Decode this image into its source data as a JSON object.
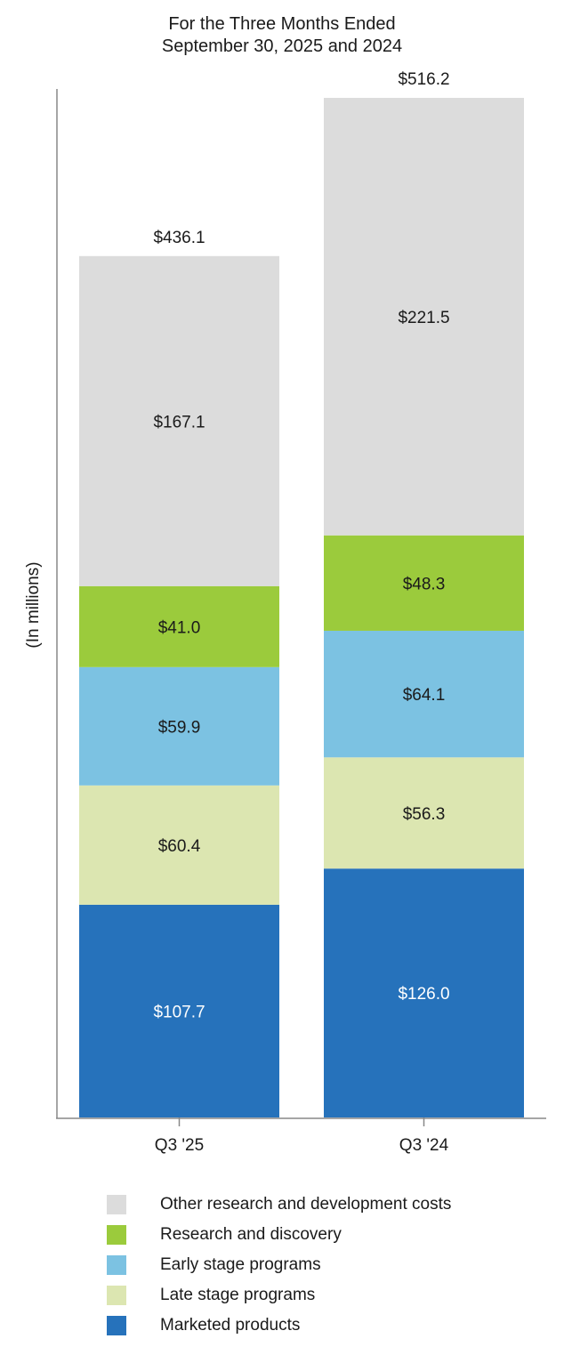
{
  "chart_data": {
    "type": "bar",
    "stacked": true,
    "title": [
      "For the Three Months Ended",
      "September 30, 2025 and 2024"
    ],
    "ylabel": "(In millions)",
    "categories": [
      "Q3 '25",
      "Q3 '24"
    ],
    "totals": [
      "$436.1",
      "$516.2"
    ],
    "ylim": [
      0,
      516.2
    ],
    "series": [
      {
        "name": "Marketed products",
        "color": "#2672bb",
        "label_color": "#ffffff",
        "values": [
          107.7,
          126.0
        ],
        "labels": [
          "$107.7",
          "$126.0"
        ]
      },
      {
        "name": "Late stage programs",
        "color": "#dce6b1",
        "label_color": "#1a1a1a",
        "values": [
          60.4,
          56.3
        ],
        "labels": [
          "$60.4",
          "$56.3"
        ]
      },
      {
        "name": "Early stage programs",
        "color": "#7cc2e2",
        "label_color": "#1a1a1a",
        "values": [
          59.9,
          64.1
        ],
        "labels": [
          "$59.9",
          "$64.1"
        ]
      },
      {
        "name": "Research and discovery",
        "color": "#9bcb3c",
        "label_color": "#1a1a1a",
        "values": [
          41.0,
          48.3
        ],
        "labels": [
          "$41.0",
          "$48.3"
        ]
      },
      {
        "name": "Other research and development costs",
        "color": "#dcdcdc",
        "label_color": "#1a1a1a",
        "values": [
          167.1,
          221.5
        ],
        "labels": [
          "$167.1",
          "$221.5"
        ]
      }
    ],
    "legend_order": [
      4,
      3,
      2,
      1,
      0
    ],
    "legend_position": "bottom",
    "grid": false
  }
}
